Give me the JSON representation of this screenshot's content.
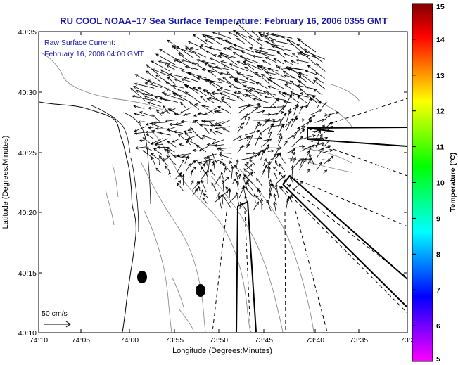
{
  "title": "RU COOL  NOAA–17  Sea Surface Temperature:  February 16, 2006 0355 GMT",
  "annotation": {
    "line1": "Raw Surface Current:",
    "line2": "February 16, 2006 04:00 GMT"
  },
  "scale_label": "50 cm/s",
  "axes": {
    "xlabel": "Longitude (Degrees:Minutes)",
    "ylabel": "Latitude (Degrees:Minutes)",
    "x_ticks": [
      "74:10",
      "74:05",
      "74:00",
      "73:55",
      "73:50",
      "73:45",
      "73:40",
      "73:35",
      "73:3"
    ],
    "y_ticks": [
      "40:35",
      "40:30",
      "40:25",
      "40:20",
      "40:15",
      "40:10"
    ]
  },
  "colorbar": {
    "label": "Temperature (°C)",
    "ticks": [
      "15",
      "14",
      "13",
      "12",
      "11",
      "10",
      "9",
      "8",
      "7",
      "6",
      "5"
    ],
    "colors": [
      "#ff00ff",
      "#8000ff",
      "#0000ff",
      "#0080ff",
      "#00ffff",
      "#00ff80",
      "#00ff00",
      "#80ff00",
      "#ffff00",
      "#ff8000",
      "#ff0000",
      "#800000"
    ]
  },
  "chart_data": {
    "type": "map",
    "x_range_label": [
      "74:10",
      "73:3"
    ],
    "y_range_label": [
      "40:10",
      "40:35"
    ],
    "scale_vector_cm_s": 50,
    "sst_range_c": [
      5,
      15
    ]
  }
}
